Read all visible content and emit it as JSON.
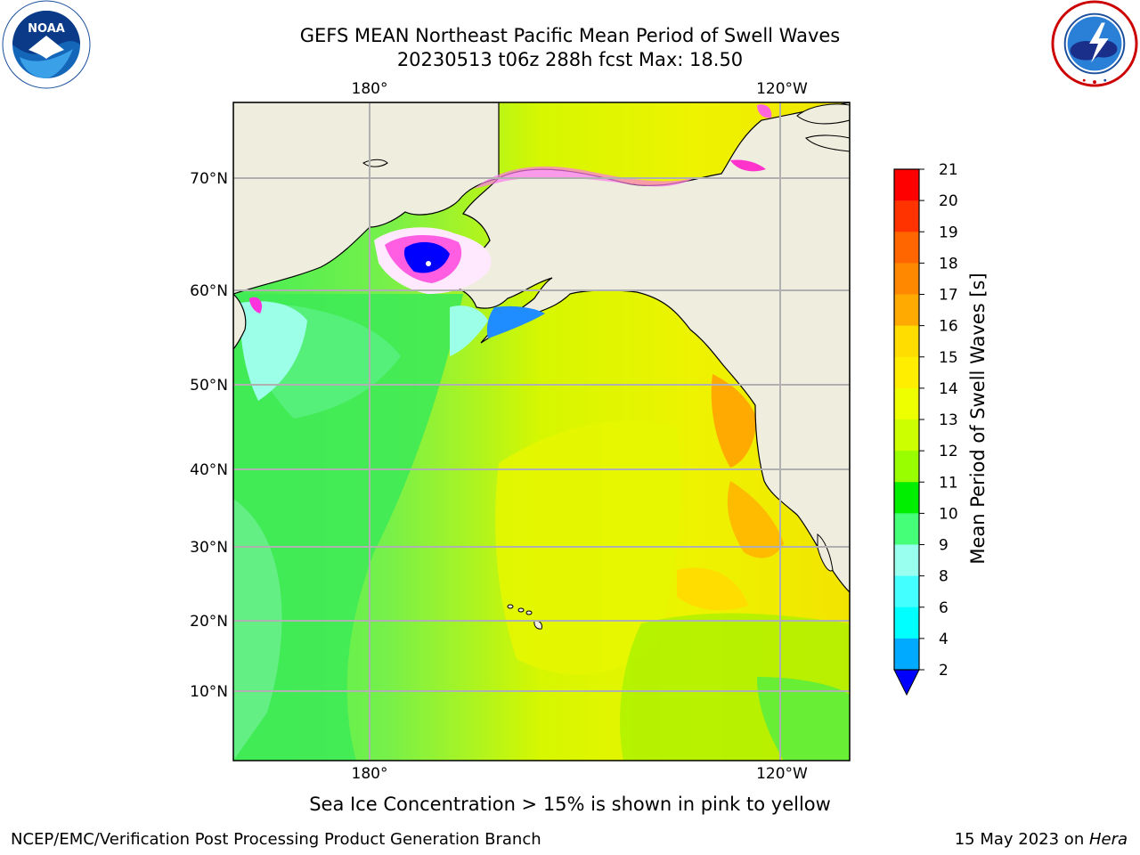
{
  "title": {
    "line1": "GEFS MEAN Northeast Pacific Mean Period of Swell Waves",
    "line2": "20230513 t06z 288h fcst   Max: 18.50"
  },
  "logos": {
    "left": "noaa-logo",
    "left_text": "NOAA",
    "right": "national-weather-service-logo",
    "right_text": "NATIONAL WEATHER SERVICE"
  },
  "map": {
    "lon_labels_top": [
      "180°",
      "120°W"
    ],
    "lon_labels_bottom": [
      "180°",
      "120°W"
    ],
    "lat_labels": [
      "70°N",
      "60°N",
      "50°N",
      "40°N",
      "30°N",
      "20°N",
      "10°N"
    ],
    "land_color": "#efedde",
    "grid_color": "#b0b0b0"
  },
  "colorbar": {
    "title": "Mean Period of Swell Waves [s]",
    "ticks": [
      "21",
      "20",
      "19",
      "18",
      "17",
      "16",
      "15",
      "14",
      "13",
      "12",
      "11",
      "10",
      "9",
      "8",
      "6",
      "4",
      "2"
    ],
    "colors": [
      "#ff0000",
      "#ff3300",
      "#ff6600",
      "#ff8800",
      "#ffaa00",
      "#ffdd00",
      "#ffee00",
      "#eeff00",
      "#ccff00",
      "#99ff00",
      "#00ee00",
      "#44ff77",
      "#99ffee",
      "#44ffff",
      "#00ffff",
      "#00aaff",
      "#0000ff"
    ],
    "extend": "min"
  },
  "notes": {
    "ice": "Sea Ice Concentration > 15% is shown in pink to yellow",
    "footer_left": "NCEP/EMC/Verification Post Processing Product Generation Branch",
    "footer_date": "15 May 2023 on ",
    "footer_host": "Hera"
  }
}
